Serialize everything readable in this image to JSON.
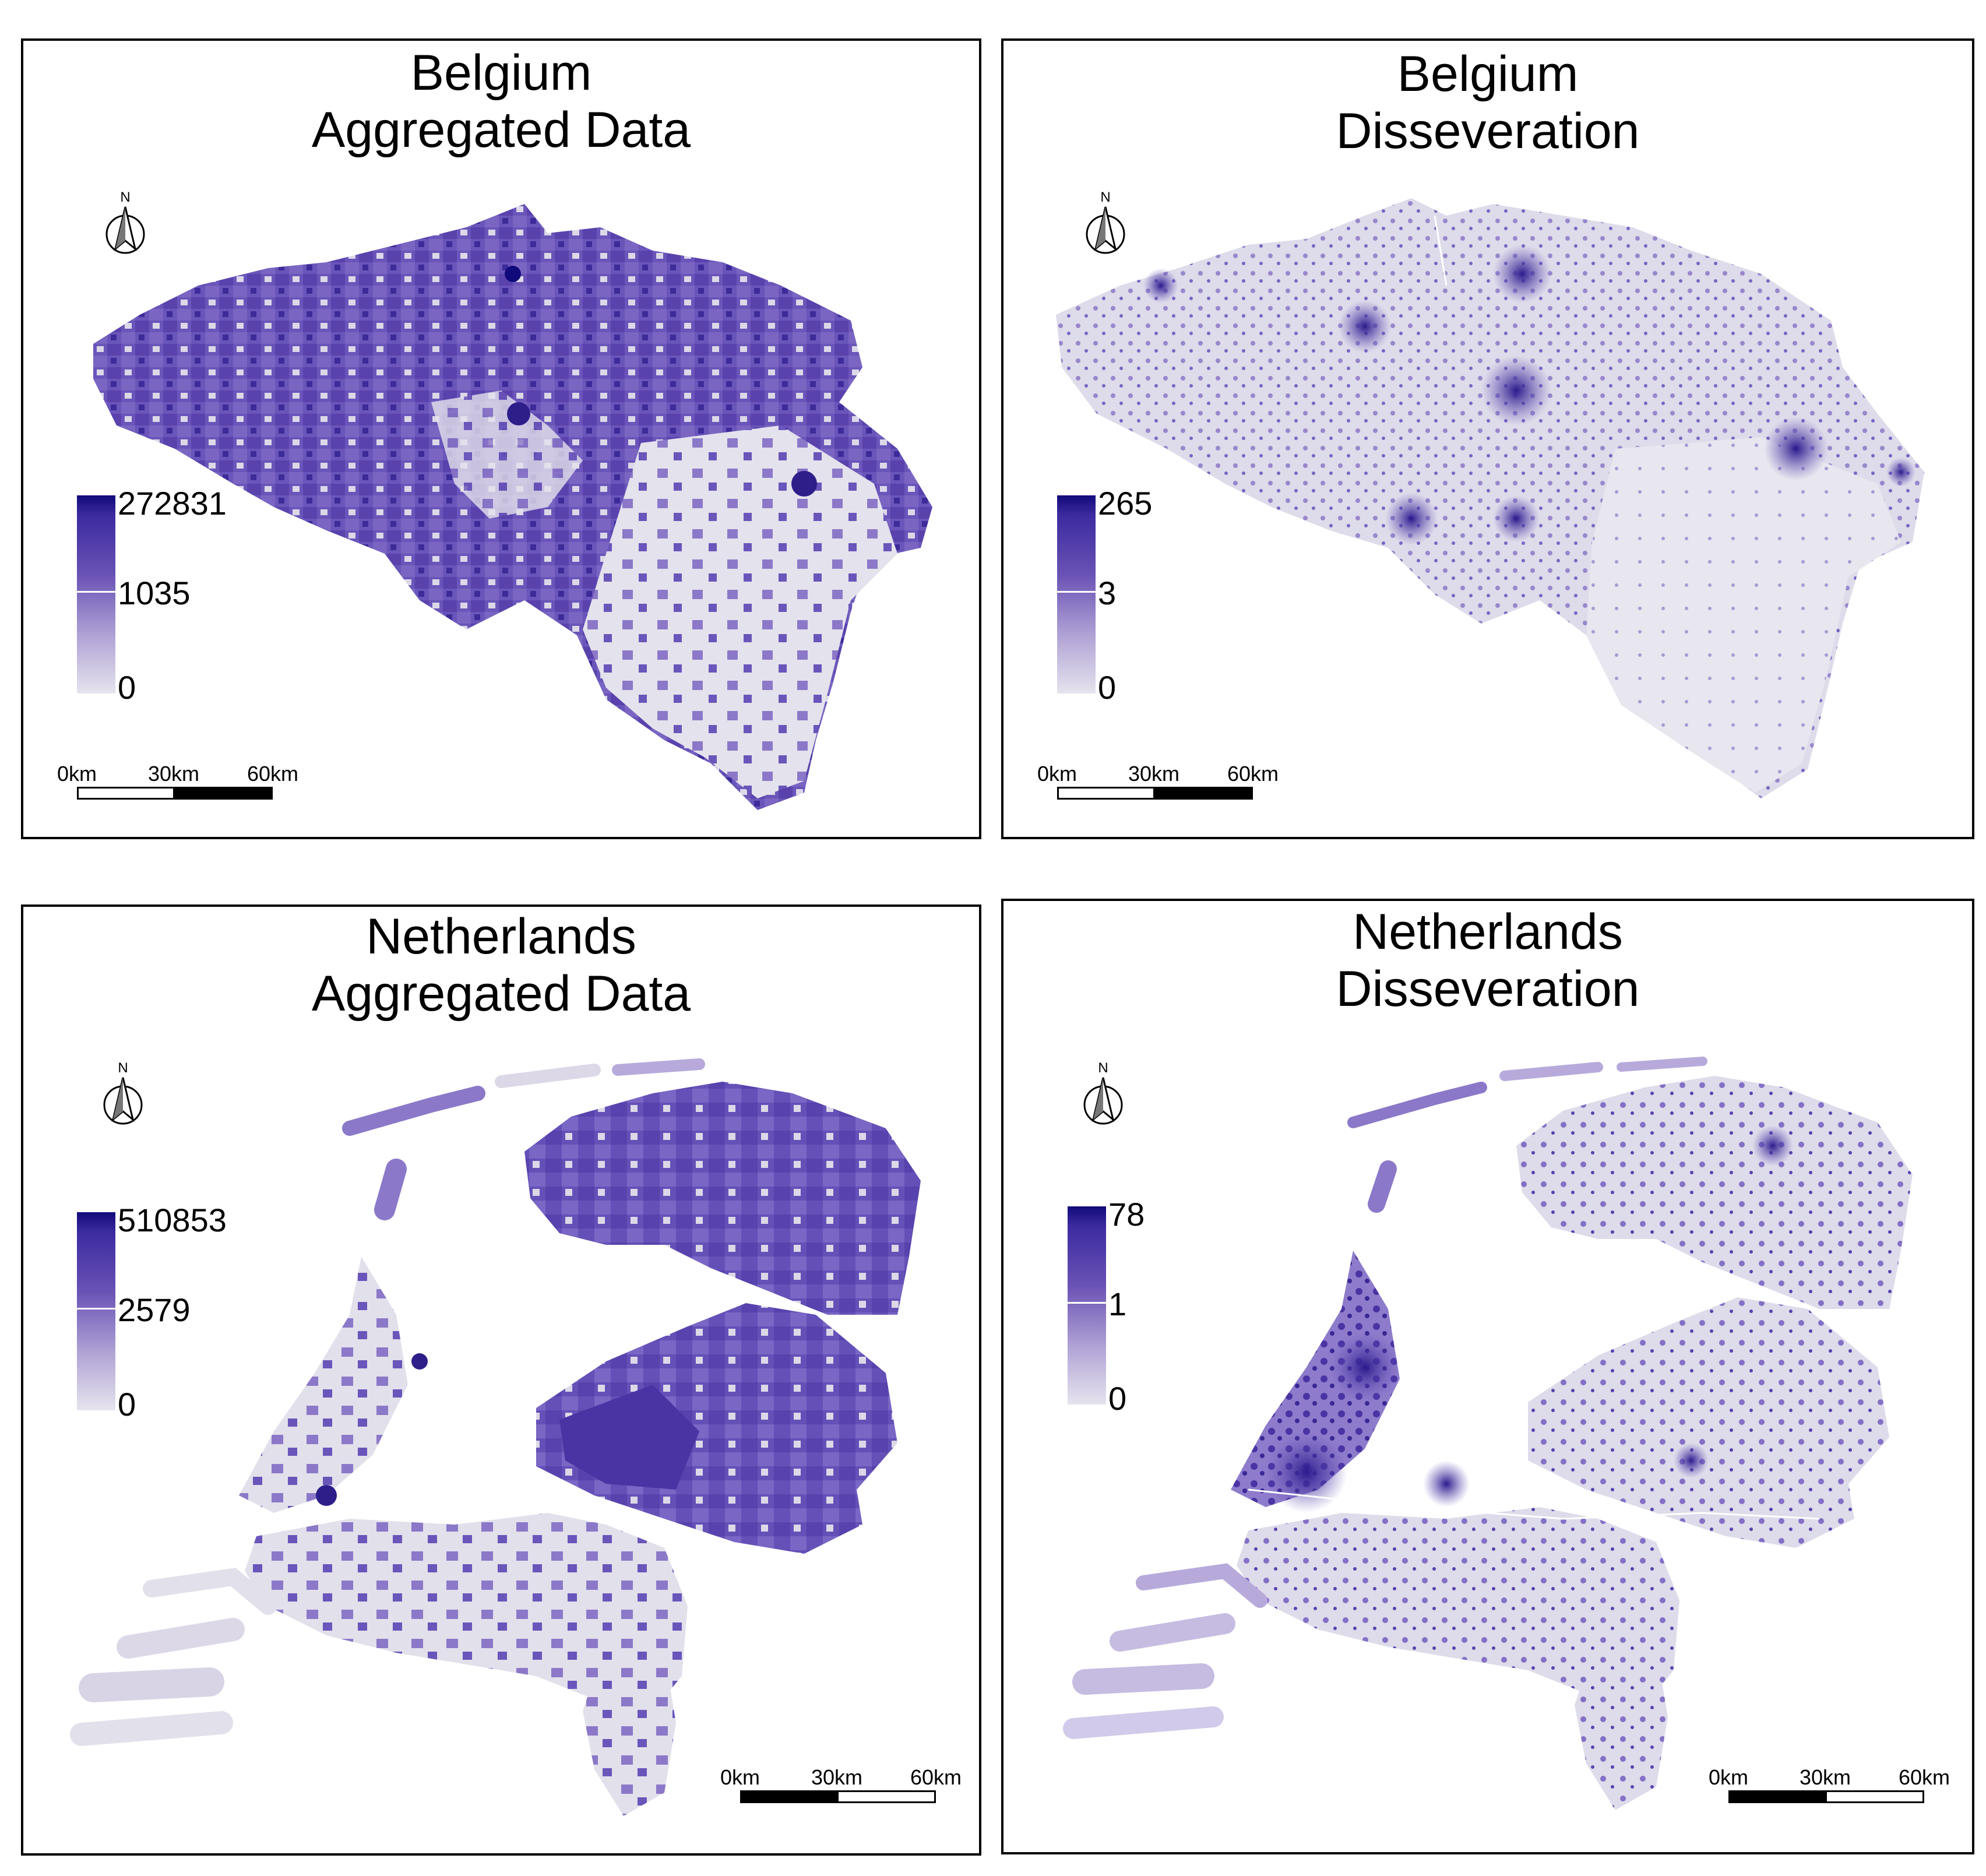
{
  "panels": [
    {
      "id": "belgium-aggregated",
      "title_line1": "Belgium",
      "title_line2": "Aggregated Data",
      "north_label": "N",
      "legend_ticks": [
        "272831",
        "1035",
        "0"
      ],
      "scale_labels": [
        "0km",
        "30km",
        "60km"
      ]
    },
    {
      "id": "belgium-disseveration",
      "title_line1": "Belgium",
      "title_line2": "Disseveration",
      "north_label": "N",
      "legend_ticks": [
        "265",
        "3",
        "0"
      ],
      "scale_labels": [
        "0km",
        "30km",
        "60km"
      ]
    },
    {
      "id": "netherlands-aggregated",
      "title_line1": "Netherlands",
      "title_line2": "Aggregated Data",
      "north_label": "N",
      "legend_ticks": [
        "510853",
        "2579",
        "0"
      ],
      "scale_labels": [
        "0km",
        "30km",
        "60km"
      ]
    },
    {
      "id": "netherlands-disseveration",
      "title_line1": "Netherlands",
      "title_line2": "Disseveration",
      "north_label": "N",
      "legend_ticks": [
        "78",
        "1",
        "0"
      ],
      "scale_labels": [
        "0km",
        "30km",
        "60km"
      ]
    }
  ],
  "colors": {
    "low": "#e6e4ee",
    "mid": "#6a52b5",
    "high": "#110a7a",
    "frame": "#000000"
  }
}
